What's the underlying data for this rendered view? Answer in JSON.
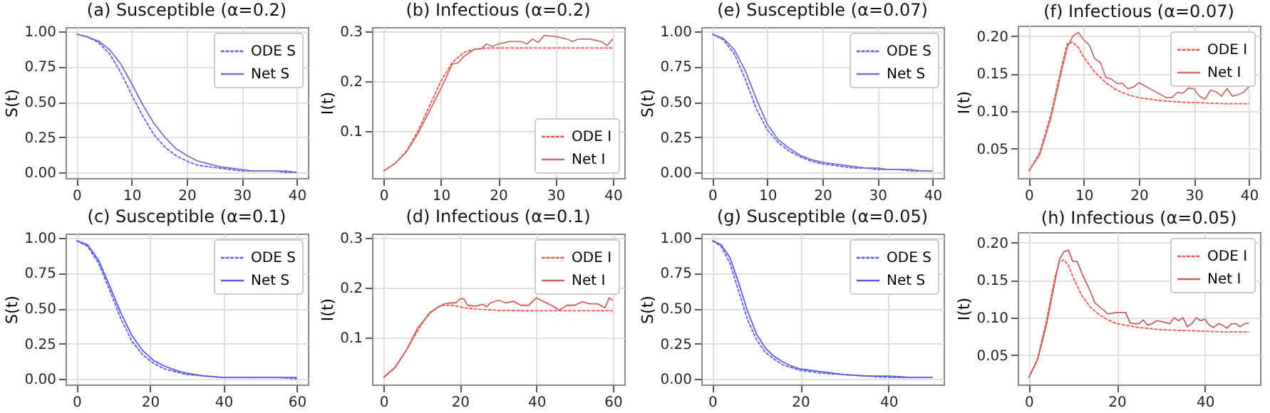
{
  "chart_data": [
    {
      "type": "line",
      "title": "(a) Susceptible (α=0.2)",
      "ylabel": "S(t)",
      "xlim": [
        -2,
        42
      ],
      "xticks": [
        0,
        10,
        20,
        30,
        40
      ],
      "ylim": [
        -0.04,
        1.03
      ],
      "yticks": [
        {
          "value": 0,
          "label": "0.00"
        },
        0.25,
        {
          "value": 0.5,
          "label": "0.50"
        },
        0.75,
        {
          "value": 1,
          "label": "1.00"
        }
      ],
      "grid": true,
      "legend": "top right",
      "series": [
        {
          "name": "ODE S",
          "color": "#5a5aff",
          "line_style": "dashed",
          "x": [
            0,
            2,
            4,
            6,
            8,
            10,
            12,
            14,
            16,
            18,
            20,
            22,
            24,
            26,
            28,
            30,
            32,
            34,
            36,
            38,
            40
          ],
          "values": [
            0.98,
            0.96,
            0.92,
            0.84,
            0.71,
            0.55,
            0.4,
            0.27,
            0.18,
            0.12,
            0.08,
            0.05,
            0.04,
            0.03,
            0.02,
            0.01,
            0.01,
            0.01,
            0.01,
            0.0,
            0.0
          ]
        },
        {
          "name": "Net S",
          "color": "#7070c8",
          "line_style": "solid",
          "x": [
            0,
            2,
            4,
            6,
            8,
            10,
            12,
            14,
            16,
            18,
            20,
            22,
            24,
            26,
            28,
            30,
            32,
            34,
            36,
            38,
            40
          ],
          "values": [
            0.98,
            0.96,
            0.93,
            0.87,
            0.77,
            0.63,
            0.48,
            0.35,
            0.25,
            0.17,
            0.12,
            0.08,
            0.06,
            0.04,
            0.03,
            0.02,
            0.01,
            0.01,
            0.01,
            0.01,
            0.0
          ]
        }
      ]
    },
    {
      "type": "line",
      "title": "(b) Infectious (α=0.2)",
      "ylabel": "I(t)",
      "xlim": [
        -2,
        42
      ],
      "xticks": [
        0,
        10,
        20,
        30,
        40
      ],
      "ylim": [
        0.006,
        0.309
      ],
      "yticks": [
        0.1,
        0.2,
        0.3
      ],
      "grid": true,
      "legend": "bottom right",
      "series": [
        {
          "name": "ODE I",
          "color": "#ff5050",
          "line_style": "dashed",
          "x": [
            0,
            2,
            4,
            6,
            8,
            10,
            12,
            14,
            16,
            18,
            20,
            24,
            28,
            32,
            36,
            40
          ],
          "values": [
            0.02,
            0.035,
            0.06,
            0.1,
            0.15,
            0.2,
            0.238,
            0.258,
            0.265,
            0.267,
            0.267,
            0.267,
            0.267,
            0.267,
            0.267,
            0.267
          ]
        },
        {
          "name": "Net I",
          "color": "#c87070",
          "line_style": "solid",
          "x": [
            0,
            2,
            4,
            6,
            8,
            10,
            12,
            13,
            14,
            16,
            17,
            18,
            19,
            20,
            22,
            24,
            25,
            26,
            27,
            28,
            30,
            32,
            33,
            34,
            36,
            38,
            39,
            40
          ],
          "values": [
            0.02,
            0.035,
            0.058,
            0.095,
            0.14,
            0.185,
            0.235,
            0.237,
            0.25,
            0.265,
            0.265,
            0.275,
            0.27,
            0.275,
            0.28,
            0.28,
            0.275,
            0.285,
            0.278,
            0.292,
            0.29,
            0.285,
            0.28,
            0.285,
            0.285,
            0.28,
            0.272,
            0.285
          ]
        }
      ]
    },
    {
      "type": "line",
      "title": "(e) Susceptible (α=0.07)",
      "ylabel": "S(t)",
      "xlim": [
        -2,
        42
      ],
      "xticks": [
        0,
        10,
        20,
        30,
        40
      ],
      "ylim": [
        -0.04,
        1.03
      ],
      "yticks": [
        {
          "value": 0,
          "label": "0.00"
        },
        0.25,
        {
          "value": 0.5,
          "label": "0.50"
        },
        0.75,
        {
          "value": 1,
          "label": "1.00"
        }
      ],
      "grid": true,
      "legend": "top right",
      "series": [
        {
          "name": "ODE S",
          "color": "#5a5aff",
          "line_style": "dashed",
          "x": [
            0,
            2,
            4,
            6,
            8,
            10,
            12,
            14,
            16,
            18,
            20,
            22,
            24,
            26,
            28,
            30,
            32,
            34,
            36,
            38,
            40
          ],
          "values": [
            0.98,
            0.94,
            0.84,
            0.66,
            0.45,
            0.3,
            0.21,
            0.15,
            0.11,
            0.08,
            0.06,
            0.05,
            0.04,
            0.03,
            0.03,
            0.02,
            0.02,
            0.02,
            0.01,
            0.01,
            0.01
          ]
        },
        {
          "name": "Net S",
          "color": "#7070c8",
          "line_style": "solid",
          "x": [
            0,
            2,
            4,
            6,
            8,
            10,
            12,
            14,
            16,
            18,
            20,
            22,
            24,
            26,
            28,
            30,
            32,
            34,
            36,
            38,
            40
          ],
          "values": [
            0.98,
            0.95,
            0.87,
            0.72,
            0.52,
            0.34,
            0.23,
            0.17,
            0.12,
            0.09,
            0.07,
            0.06,
            0.05,
            0.04,
            0.03,
            0.03,
            0.02,
            0.02,
            0.02,
            0.01,
            0.01
          ]
        }
      ]
    },
    {
      "type": "line",
      "title": "(f) Infectious (α=0.07)",
      "ylabel": "I(t)",
      "xlim": [
        -2,
        42
      ],
      "xticks": [
        0,
        10,
        20,
        30,
        40
      ],
      "ylim": [
        0.011,
        0.214
      ],
      "yticks": [
        0.05,
        {
          "value": 0.1,
          "label": "0.10"
        },
        0.15,
        {
          "value": 0.2,
          "label": "0.20"
        }
      ],
      "grid": true,
      "legend": "top right",
      "series": [
        {
          "name": "ODE I",
          "color": "#ff5050",
          "line_style": "dashed",
          "x": [
            0,
            2,
            4,
            6,
            7,
            8,
            9,
            10,
            12,
            14,
            16,
            18,
            20,
            24,
            28,
            32,
            36,
            40
          ],
          "values": [
            0.02,
            0.045,
            0.095,
            0.16,
            0.19,
            0.192,
            0.185,
            0.172,
            0.152,
            0.138,
            0.128,
            0.122,
            0.118,
            0.114,
            0.112,
            0.111,
            0.11,
            0.11
          ]
        },
        {
          "name": "Net I",
          "color": "#c87070",
          "line_style": "solid",
          "x": [
            0,
            2,
            4,
            6,
            7,
            8,
            9,
            10,
            11,
            12,
            13,
            14,
            15,
            16,
            17,
            18,
            19,
            20,
            22,
            24,
            25,
            26,
            27,
            28,
            29,
            30,
            31,
            32,
            33,
            34,
            35,
            36,
            37,
            38,
            39,
            40
          ],
          "values": [
            0.02,
            0.042,
            0.09,
            0.155,
            0.185,
            0.2,
            0.205,
            0.195,
            0.188,
            0.17,
            0.165,
            0.145,
            0.143,
            0.137,
            0.137,
            0.13,
            0.132,
            0.138,
            0.13,
            0.122,
            0.118,
            0.118,
            0.125,
            0.124,
            0.131,
            0.13,
            0.12,
            0.116,
            0.128,
            0.126,
            0.12,
            0.13,
            0.12,
            0.122,
            0.125,
            0.133
          ]
        }
      ]
    },
    {
      "type": "line",
      "title": "(c) Susceptible (α=0.1)",
      "ylabel": "S(t)",
      "xlim": [
        -3,
        63
      ],
      "xticks": [
        0,
        20,
        40,
        60
      ],
      "ylim": [
        -0.04,
        1.03
      ],
      "yticks": [
        {
          "value": 0,
          "label": "0.00"
        },
        0.25,
        {
          "value": 0.5,
          "label": "0.50"
        },
        0.75,
        {
          "value": 1,
          "label": "1.00"
        }
      ],
      "grid": true,
      "legend": "top right",
      "series": [
        {
          "name": "ODE S",
          "color": "#5a5aff",
          "line_style": "dashed",
          "x": [
            0,
            3,
            6,
            9,
            12,
            15,
            18,
            21,
            24,
            27,
            30,
            35,
            40,
            45,
            50,
            55,
            60
          ],
          "values": [
            0.98,
            0.94,
            0.82,
            0.63,
            0.43,
            0.27,
            0.17,
            0.11,
            0.07,
            0.05,
            0.03,
            0.02,
            0.01,
            0.01,
            0.01,
            0.01,
            0.0
          ]
        },
        {
          "name": "Net S",
          "color": "#5a5ae0",
          "line_style": "solid",
          "x": [
            0,
            3,
            6,
            9,
            12,
            15,
            18,
            21,
            24,
            27,
            30,
            35,
            40,
            45,
            50,
            55,
            60
          ],
          "values": [
            0.98,
            0.95,
            0.84,
            0.66,
            0.47,
            0.31,
            0.2,
            0.13,
            0.09,
            0.06,
            0.04,
            0.02,
            0.01,
            0.01,
            0.01,
            0.01,
            0.01
          ]
        }
      ]
    },
    {
      "type": "line",
      "title": "(d) Infectious (α=0.1)",
      "ylabel": "I(t)",
      "xlim": [
        -3,
        63
      ],
      "xticks": [
        0,
        20,
        40,
        60
      ],
      "ylim": [
        0.006,
        0.309
      ],
      "yticks": [
        0.1,
        0.2,
        0.3
      ],
      "grid": true,
      "legend": "top right",
      "series": [
        {
          "name": "ODE I",
          "color": "#ff5050",
          "line_style": "dashed",
          "x": [
            0,
            3,
            6,
            9,
            12,
            15,
            18,
            21,
            25,
            30,
            40,
            50,
            60
          ],
          "values": [
            0.02,
            0.04,
            0.075,
            0.115,
            0.15,
            0.165,
            0.165,
            0.16,
            0.157,
            0.155,
            0.154,
            0.154,
            0.154
          ]
        },
        {
          "name": "Net I",
          "color": "#d06060",
          "line_style": "solid",
          "x": [
            0,
            3,
            6,
            9,
            12,
            14,
            16,
            18,
            19,
            20,
            21,
            22,
            24,
            26,
            27,
            28,
            30,
            32,
            34,
            36,
            38,
            40,
            42,
            44,
            46,
            48,
            50,
            52,
            54,
            56,
            58,
            59,
            60
          ],
          "values": [
            0.02,
            0.04,
            0.075,
            0.12,
            0.148,
            0.16,
            0.168,
            0.17,
            0.17,
            0.178,
            0.178,
            0.165,
            0.163,
            0.167,
            0.162,
            0.17,
            0.175,
            0.17,
            0.173,
            0.165,
            0.165,
            0.18,
            0.172,
            0.165,
            0.155,
            0.165,
            0.165,
            0.172,
            0.168,
            0.168,
            0.16,
            0.18,
            0.175
          ]
        }
      ]
    },
    {
      "type": "line",
      "title": "(g) Susceptible (α=0.05)",
      "ylabel": "S(t)",
      "xlim": [
        -2.5,
        52.5
      ],
      "xticks": [
        0,
        20,
        40
      ],
      "ylim": [
        -0.04,
        1.03
      ],
      "yticks": [
        {
          "value": 0,
          "label": "0.00"
        },
        0.25,
        {
          "value": 0.5,
          "label": "0.50"
        },
        0.75,
        {
          "value": 1,
          "label": "1.00"
        }
      ],
      "grid": true,
      "legend": "top right",
      "series": [
        {
          "name": "ODE S",
          "color": "#5a5aff",
          "line_style": "dashed",
          "x": [
            0,
            2,
            4,
            6,
            8,
            10,
            12,
            14,
            16,
            18,
            20,
            25,
            30,
            35,
            40,
            45,
            50
          ],
          "values": [
            0.98,
            0.94,
            0.82,
            0.62,
            0.42,
            0.28,
            0.19,
            0.14,
            0.1,
            0.08,
            0.06,
            0.04,
            0.03,
            0.02,
            0.01,
            0.01,
            0.01
          ]
        },
        {
          "name": "Net S",
          "color": "#5a5ae0",
          "line_style": "solid",
          "x": [
            0,
            2,
            4,
            6,
            8,
            10,
            12,
            14,
            16,
            18,
            20,
            25,
            30,
            35,
            40,
            45,
            50
          ],
          "values": [
            0.98,
            0.95,
            0.86,
            0.68,
            0.48,
            0.32,
            0.22,
            0.16,
            0.12,
            0.09,
            0.07,
            0.05,
            0.03,
            0.02,
            0.02,
            0.01,
            0.01
          ]
        }
      ]
    },
    {
      "type": "line",
      "title": "(h) Infectious (α=0.05)",
      "ylabel": "I(t)",
      "xlim": [
        -2.5,
        52.5
      ],
      "xticks": [
        0,
        20,
        40
      ],
      "ylim": [
        0.011,
        0.214
      ],
      "yticks": [
        0.05,
        {
          "value": 0.1,
          "label": "0.10"
        },
        0.15,
        {
          "value": 0.2,
          "label": "0.20"
        }
      ],
      "grid": true,
      "legend": "top right",
      "series": [
        {
          "name": "ODE I",
          "color": "#ff5050",
          "line_style": "dashed",
          "x": [
            0,
            2,
            4,
            6,
            7,
            8,
            9,
            10,
            12,
            14,
            16,
            18,
            20,
            25,
            30,
            35,
            40,
            45,
            50
          ],
          "values": [
            0.02,
            0.045,
            0.095,
            0.155,
            0.175,
            0.177,
            0.17,
            0.155,
            0.13,
            0.114,
            0.104,
            0.097,
            0.092,
            0.087,
            0.084,
            0.083,
            0.082,
            0.081,
            0.081
          ]
        },
        {
          "name": "Net I",
          "color": "#c06060",
          "line_style": "solid",
          "x": [
            0,
            2,
            4,
            6,
            7,
            8,
            9,
            10,
            11,
            12,
            14,
            15,
            16,
            17,
            18,
            20,
            22,
            23,
            24,
            25,
            26,
            27,
            28,
            29,
            30,
            32,
            33,
            34,
            35,
            36,
            37,
            38,
            39,
            40,
            41,
            42,
            43,
            44,
            45,
            46,
            47,
            48,
            49,
            50
          ],
          "values": [
            0.02,
            0.044,
            0.09,
            0.15,
            0.178,
            0.188,
            0.19,
            0.175,
            0.175,
            0.16,
            0.135,
            0.12,
            0.115,
            0.11,
            0.105,
            0.107,
            0.107,
            0.093,
            0.092,
            0.092,
            0.097,
            0.09,
            0.092,
            0.096,
            0.095,
            0.092,
            0.1,
            0.096,
            0.1,
            0.088,
            0.092,
            0.1,
            0.096,
            0.098,
            0.09,
            0.087,
            0.092,
            0.09,
            0.086,
            0.092,
            0.092,
            0.088,
            0.092,
            0.093
          ]
        }
      ]
    }
  ]
}
